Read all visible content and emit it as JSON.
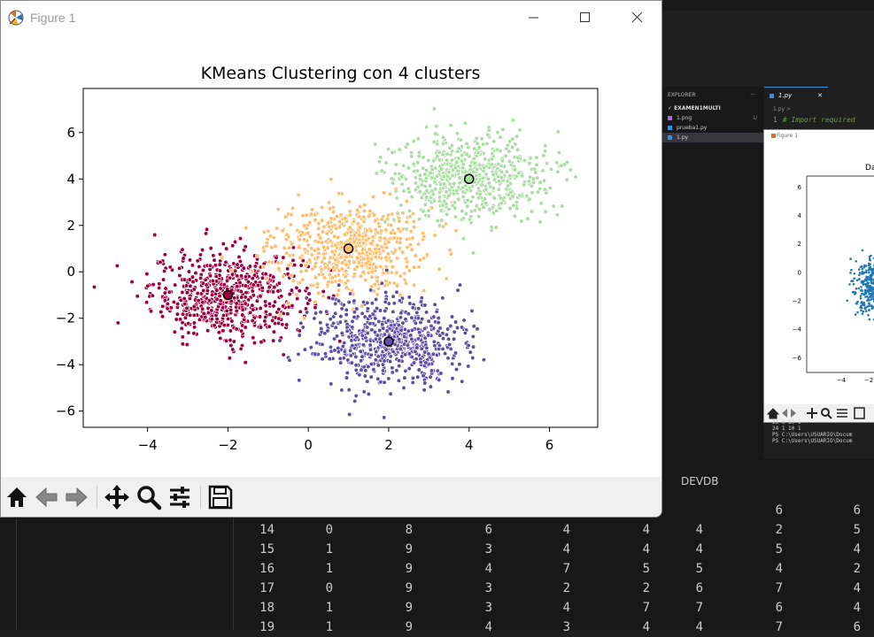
{
  "window": {
    "title": "Figure 1",
    "buttons": [
      "minimize-icon",
      "maximize-icon",
      "close-icon"
    ]
  },
  "toolbar": {
    "icons": [
      "home-icon",
      "back-icon",
      "forward-icon",
      "pan-icon",
      "zoom-icon",
      "configure-subplots-icon",
      "save-icon"
    ]
  },
  "chart_data": {
    "type": "scatter",
    "title": "KMeans Clustering con 4 clusters",
    "xlabel": "",
    "ylabel": "",
    "xlim": [
      -5.6,
      7.2
    ],
    "ylim": [
      -6.7,
      7.9
    ],
    "xticks": [
      "−4",
      "−2",
      "0",
      "2",
      "4",
      "6"
    ],
    "xtick_values": [
      -4,
      -2,
      0,
      2,
      4,
      6
    ],
    "yticks": [
      "−6",
      "−4",
      "−2",
      "0",
      "2",
      "4",
      "6"
    ],
    "ytick_values": [
      -6,
      -4,
      -2,
      0,
      2,
      4,
      6
    ],
    "grid": false,
    "series": [
      {
        "cluster": 0,
        "color": "#9e0142",
        "center": [
          -2,
          -1
        ],
        "spread": 0.95,
        "count": 650
      },
      {
        "cluster": 1,
        "color": "#fdbf6f",
        "center": [
          1,
          1
        ],
        "spread": 0.95,
        "count": 650
      },
      {
        "cluster": 2,
        "color": "#5e4fa2",
        "center": [
          2,
          -3
        ],
        "spread": 0.95,
        "count": 650
      },
      {
        "cluster": 3,
        "color": "#abdda4",
        "center": [
          4,
          4
        ],
        "spread": 0.95,
        "count": 650
      }
    ],
    "centroids": [
      {
        "x": -2,
        "y": -1,
        "color": "#9e0142"
      },
      {
        "x": 1,
        "y": 1,
        "color": "#fdbf6f"
      },
      {
        "x": 2,
        "y": -3,
        "color": "#5e4fa2"
      },
      {
        "x": 4,
        "y": 4,
        "color": "#abdda4"
      }
    ]
  },
  "background": {
    "explorer": {
      "header": "EXPLORER",
      "dots": "···",
      "root": "✓ EXAMEN1MULTI",
      "files": [
        {
          "name": "1.png",
          "badge": "U"
        },
        {
          "name": "prueba1.py",
          "badge": ""
        },
        {
          "name": "1.py",
          "badge": ""
        }
      ]
    },
    "editor": {
      "tab": "1.py",
      "tab_close": "✕",
      "breadcrumb": "1.py >",
      "line_number": "1",
      "code": "# Import required"
    },
    "inner_figure": {
      "title": "Figure 1",
      "chart_title": "Da",
      "yticks": [
        "6",
        "4",
        "2",
        "0",
        "−2",
        "−4",
        "−6"
      ],
      "xticks": [
        "−4",
        "−2"
      ],
      "color": "#1f77b4"
    },
    "terminal_small": [
      "23    0    10       1",
      "24    1    10       1",
      "PS C:\\Users\\USUARIO\\Docum",
      "PS C:\\Users\\USUARIO\\Docum"
    ],
    "panel_label": "DEVDB",
    "terminal_rows": [
      [
        "",
        "",
        "",
        "",
        "",
        "",
        "",
        "6",
        "6"
      ],
      [
        "14",
        "0",
        "8",
        "6",
        "4",
        "4",
        "4",
        "2",
        "5"
      ],
      [
        "15",
        "1",
        "9",
        "3",
        "4",
        "4",
        "4",
        "5",
        "4"
      ],
      [
        "16",
        "1",
        "9",
        "4",
        "7",
        "5",
        "5",
        "4",
        "2"
      ],
      [
        "17",
        "0",
        "9",
        "3",
        "2",
        "2",
        "6",
        "7",
        "4"
      ],
      [
        "18",
        "1",
        "9",
        "3",
        "4",
        "7",
        "7",
        "6",
        "4"
      ],
      [
        "19",
        "1",
        "9",
        "4",
        "3",
        "4",
        "4",
        "7",
        "6"
      ]
    ]
  }
}
